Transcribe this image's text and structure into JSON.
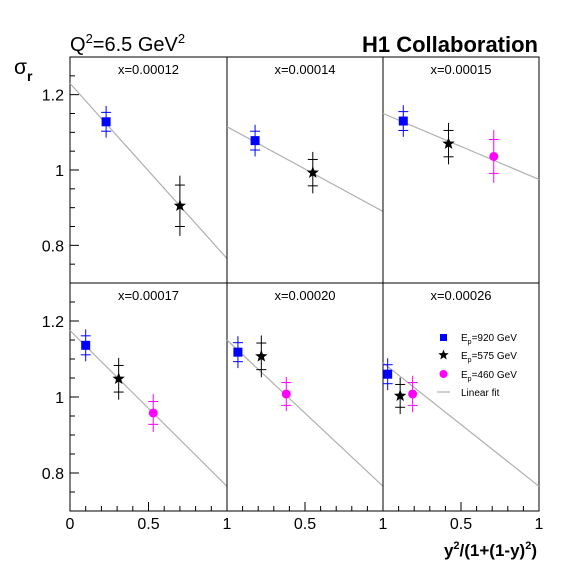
{
  "header": {
    "q2_prefix": "Q",
    "q2_sup": "2",
    "q2_value": "=6.5 GeV",
    "q2_unit_sup": "2",
    "collaboration": "H1 Collaboration"
  },
  "axes": {
    "ylabel_main": "σ",
    "ylabel_sub": "r",
    "xlabel_prefix": "y",
    "xlabel_sup1": "2",
    "xlabel_mid": "/(1+(1-y)",
    "xlabel_sup2": "2",
    "xlabel_end": ")"
  },
  "legend": [
    {
      "label_main": "E",
      "label_sub": "p",
      "label_rest": "=920 GeV",
      "marker": "square",
      "color": "#0000ff"
    },
    {
      "label_main": "E",
      "label_sub": "p",
      "label_rest": "=575 GeV",
      "marker": "star",
      "color": "#000000"
    },
    {
      "label_main": "E",
      "label_sub": "p",
      "label_rest": "=460 GeV",
      "marker": "circle",
      "color": "#ff00ff"
    },
    {
      "label_main": "Linear fit",
      "label_sub": "",
      "label_rest": "",
      "marker": "line",
      "color": "#b0b0b0"
    }
  ],
  "chart_data": {
    "type": "scatter",
    "ylim": [
      0.7,
      1.3
    ],
    "xlim": [
      0,
      1
    ],
    "yticks": [
      0.8,
      1.0,
      1.2
    ],
    "ytick_labels": [
      "0.8",
      "1",
      "1.2"
    ],
    "xtick_labels_row": [
      "0",
      "0.5",
      "1",
      "0.5",
      "1",
      "0.5",
      "1"
    ],
    "grid": false,
    "colors": {
      "920": "#0000ff",
      "575": "#000000",
      "460": "#ff00ff",
      "fit": "#b0b0b0"
    },
    "panels": [
      {
        "title": "x=0.00012",
        "fit": [
          1.23,
          0.765
        ],
        "points": [
          {
            "series": "920",
            "x": 0.23,
            "y": 1.128,
            "stat": 0.025,
            "tot": 0.042
          },
          {
            "series": "575",
            "x": 0.7,
            "y": 0.905,
            "stat": 0.055,
            "tot": 0.08
          }
        ]
      },
      {
        "title": "x=0.00014",
        "fit": [
          1.115,
          0.89
        ],
        "points": [
          {
            "series": "920",
            "x": 0.18,
            "y": 1.078,
            "stat": 0.025,
            "tot": 0.042
          },
          {
            "series": "575",
            "x": 0.55,
            "y": 0.993,
            "stat": 0.035,
            "tot": 0.055
          }
        ]
      },
      {
        "title": "x=0.00015",
        "fit": [
          1.15,
          0.975
        ],
        "points": [
          {
            "series": "920",
            "x": 0.13,
            "y": 1.13,
            "stat": 0.025,
            "tot": 0.042
          },
          {
            "series": "575",
            "x": 0.42,
            "y": 1.07,
            "stat": 0.035,
            "tot": 0.055
          },
          {
            "series": "460",
            "x": 0.71,
            "y": 1.036,
            "stat": 0.045,
            "tot": 0.07
          }
        ]
      },
      {
        "title": "x=0.00017",
        "fit": [
          1.175,
          0.765
        ],
        "points": [
          {
            "series": "920",
            "x": 0.1,
            "y": 1.136,
            "stat": 0.025,
            "tot": 0.042
          },
          {
            "series": "575",
            "x": 0.31,
            "y": 1.048,
            "stat": 0.035,
            "tot": 0.055
          },
          {
            "series": "460",
            "x": 0.53,
            "y": 0.958,
            "stat": 0.03,
            "tot": 0.05
          }
        ]
      },
      {
        "title": "x=0.00020",
        "fit": [
          1.15,
          0.765
        ],
        "points": [
          {
            "series": "920",
            "x": 0.07,
            "y": 1.118,
            "stat": 0.025,
            "tot": 0.042
          },
          {
            "series": "575",
            "x": 0.22,
            "y": 1.107,
            "stat": 0.035,
            "tot": 0.055
          },
          {
            "series": "460",
            "x": 0.38,
            "y": 1.008,
            "stat": 0.03,
            "tot": 0.045
          }
        ]
      },
      {
        "title": "x=0.00026",
        "fit": [
          1.09,
          0.765
        ],
        "points": [
          {
            "series": "920",
            "x": 0.03,
            "y": 1.06,
            "stat": 0.025,
            "tot": 0.042
          },
          {
            "series": "575",
            "x": 0.11,
            "y": 1.003,
            "stat": 0.03,
            "tot": 0.048
          },
          {
            "series": "460",
            "x": 0.19,
            "y": 1.008,
            "stat": 0.03,
            "tot": 0.048
          }
        ]
      }
    ]
  }
}
